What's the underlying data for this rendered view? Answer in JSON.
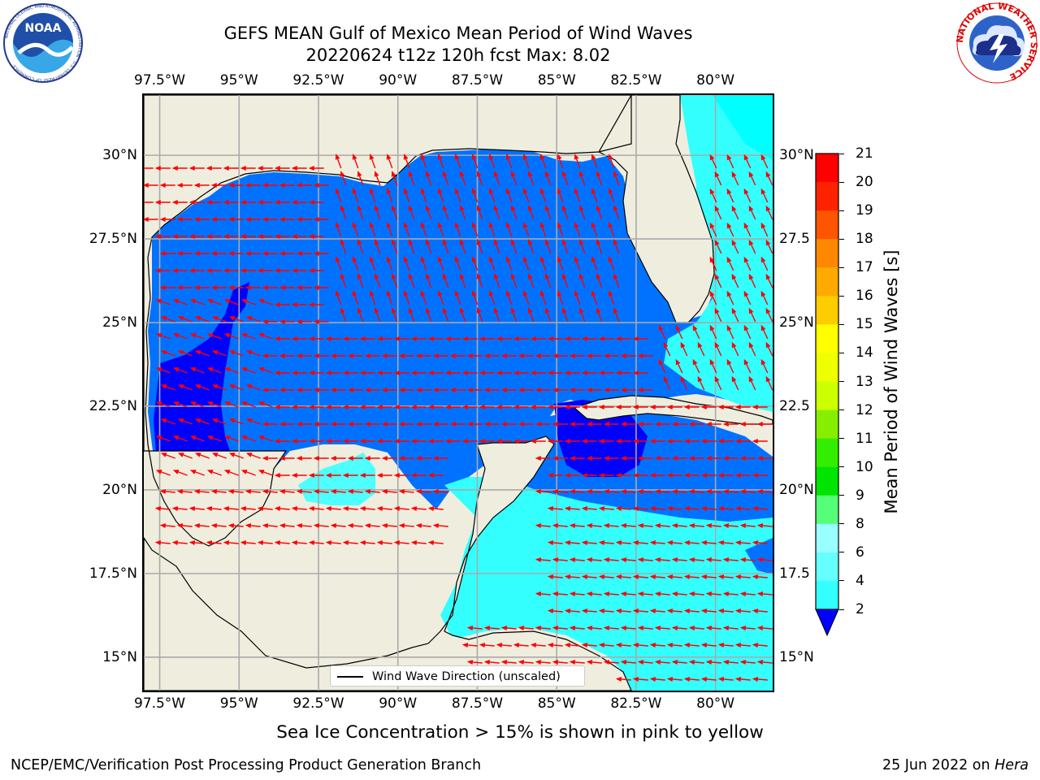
{
  "title": {
    "line1": "GEFS MEAN Gulf of Mexico Mean Period of Wind Waves",
    "line2": "20220624 t12z 120h fcst   Max: 8.02"
  },
  "logos": {
    "left_name": "NOAA",
    "left_ring": "NATIONAL OCEANIC AND ATMOSPHERIC ADMINISTRATION · U.S. DEPARTMENT OF COMMERCE",
    "right_ring": "NATIONAL WEATHER SERVICE"
  },
  "axes": {
    "lon_labels": [
      "97.5°W",
      "95°W",
      "92.5°W",
      "90°W",
      "87.5°W",
      "85°W",
      "82.5°W",
      "80°W"
    ],
    "lon_values": [
      -97.5,
      -95,
      -92.5,
      -90,
      -87.5,
      -85,
      -82.5,
      -80
    ],
    "lat_labels": [
      "30°N",
      "27.5°N",
      "25°N",
      "22.5°N",
      "20°N",
      "17.5°N",
      "15°N"
    ],
    "lat_values": [
      30,
      27.5,
      25,
      22.5,
      20,
      17.5,
      15
    ],
    "right_lat_labels": [
      "30°N",
      "27.5",
      "25°N",
      "22.5",
      "20°N",
      "17.5",
      "15°N"
    ],
    "lon_range": [
      -98.0,
      -78.2
    ],
    "lat_range": [
      14.0,
      31.8
    ],
    "grid": true
  },
  "colorbar": {
    "label": "Mean Period of Wind Waves [s]",
    "ticks": [
      "2",
      "4",
      "6",
      "8",
      "9",
      "10",
      "11",
      "12",
      "13",
      "14",
      "15",
      "16",
      "17",
      "18",
      "19",
      "20",
      "21"
    ],
    "colors": [
      "#0072ff",
      "#00ffff",
      "#33ffff",
      "#66ffff",
      "#99ffff",
      "#55ff77",
      "#00e500",
      "#33ee00",
      "#88ee00",
      "#ccff00",
      "#eeff00",
      "#ffff00",
      "#ffcc00",
      "#ffaa00",
      "#ff8800",
      "#ff5500",
      "#ff2200",
      "#ff0000"
    ],
    "under_color": "#0000ff",
    "range": [
      2,
      21
    ]
  },
  "legend": {
    "entry": "Wind Wave Direction (unscaled)"
  },
  "colors": {
    "land": "#efedde",
    "sea_ice_free_dark": "#0000ff",
    "period_2_4": "#0072ff",
    "period_4_6": "#00ffff",
    "period_6_8": "#4dffff",
    "arrow": "#ff0000"
  },
  "notes": {
    "sea_ice": "Sea Ice Concentration > 15% is shown in pink to yellow"
  },
  "footer": {
    "left": "NCEP/EMC/Verification Post Processing Product Generation Branch",
    "date": "25 Jun 2022 on ",
    "machine": "Hera"
  }
}
